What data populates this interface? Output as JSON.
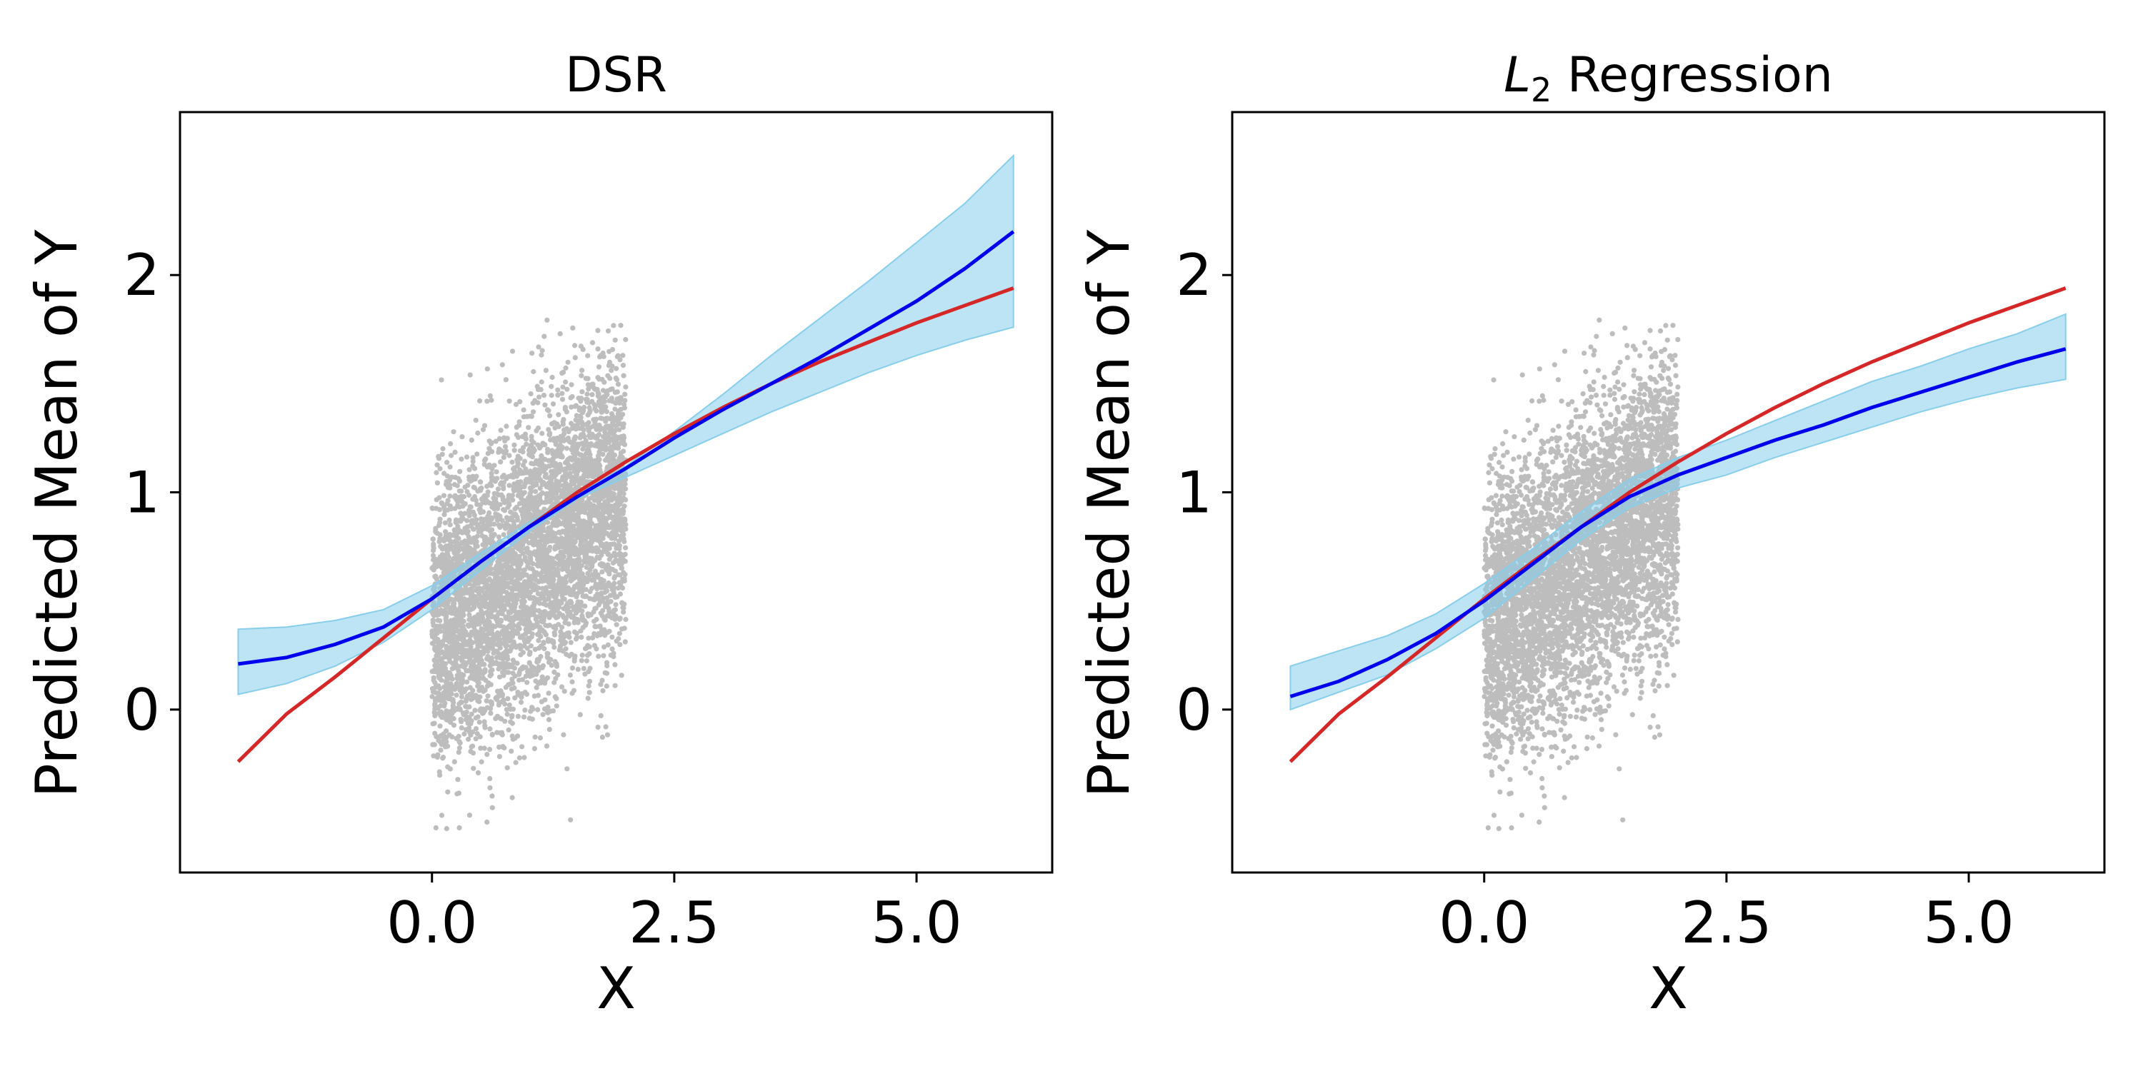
{
  "chart_data": [
    {
      "type": "line",
      "title": "DSR",
      "title_subscript": "",
      "title_suffix": "",
      "xlabel": "X",
      "ylabel": "Predicted Mean of Y",
      "xlim": [
        -2.6,
        6.4
      ],
      "ylim": [
        -0.75,
        2.75
      ],
      "xticks": [
        0.0,
        2.5,
        5.0
      ],
      "xtick_labels": [
        "0.0",
        "2.5",
        "5.0"
      ],
      "yticks": [
        0,
        1,
        2
      ],
      "ytick_labels": [
        "0",
        "1",
        "2"
      ],
      "grid": false,
      "colors": {
        "band": "#87ceeb",
        "predicted": "#0000ee",
        "true": "#d62728",
        "scatter": "#bdbdbd"
      },
      "x": [
        -2.0,
        -1.5,
        -1.0,
        -0.5,
        0.0,
        0.5,
        1.0,
        1.5,
        2.0,
        2.5,
        3.0,
        3.5,
        4.0,
        4.5,
        5.0,
        5.5,
        6.0
      ],
      "series": [
        {
          "role": "band_lower",
          "style": "band",
          "values": [
            0.07,
            0.12,
            0.2,
            0.31,
            0.46,
            0.64,
            0.82,
            0.97,
            1.07,
            1.17,
            1.27,
            1.37,
            1.46,
            1.55,
            1.63,
            1.7,
            1.76
          ]
        },
        {
          "role": "band_upper",
          "style": "band",
          "values": [
            0.37,
            0.38,
            0.41,
            0.46,
            0.57,
            0.72,
            0.86,
            0.99,
            1.12,
            1.28,
            1.45,
            1.63,
            1.8,
            1.97,
            2.15,
            2.33,
            2.55
          ]
        },
        {
          "role": "predicted",
          "style": "line",
          "values": [
            0.21,
            0.24,
            0.3,
            0.38,
            0.51,
            0.68,
            0.84,
            0.98,
            1.11,
            1.25,
            1.38,
            1.5,
            1.62,
            1.75,
            1.88,
            2.03,
            2.2
          ]
        },
        {
          "role": "true",
          "style": "line",
          "values": [
            -0.24,
            -0.02,
            0.15,
            0.33,
            0.51,
            0.68,
            0.84,
            1.0,
            1.14,
            1.27,
            1.39,
            1.5,
            1.6,
            1.69,
            1.78,
            1.86,
            1.94
          ]
        }
      ],
      "scatter": {
        "x_range": [
          0.0,
          2.0
        ],
        "center": [
          0.9,
          0.65
        ],
        "y_min": -0.55,
        "y_max": 1.8,
        "points": 5000
      }
    },
    {
      "type": "line",
      "title": "L",
      "title_subscript": "2",
      "title_suffix": " Regression",
      "xlabel": "X",
      "ylabel": "Predicted Mean of Y",
      "xlim": [
        -2.6,
        6.4
      ],
      "ylim": [
        -0.75,
        2.75
      ],
      "xticks": [
        0.0,
        2.5,
        5.0
      ],
      "xtick_labels": [
        "0.0",
        "2.5",
        "5.0"
      ],
      "yticks": [
        0,
        1,
        2
      ],
      "ytick_labels": [
        "0",
        "1",
        "2"
      ],
      "grid": false,
      "colors": {
        "band": "#87ceeb",
        "predicted": "#0000ee",
        "true": "#d62728",
        "scatter": "#bdbdbd"
      },
      "x": [
        -2.0,
        -1.5,
        -1.0,
        -0.5,
        0.0,
        0.5,
        1.0,
        1.5,
        2.0,
        2.5,
        3.0,
        3.5,
        4.0,
        4.5,
        5.0,
        5.5,
        6.0
      ],
      "series": [
        {
          "role": "band_lower",
          "style": "band",
          "values": [
            0.0,
            0.08,
            0.16,
            0.28,
            0.42,
            0.6,
            0.78,
            0.93,
            1.02,
            1.08,
            1.16,
            1.23,
            1.3,
            1.37,
            1.43,
            1.48,
            1.52
          ]
        },
        {
          "role": "band_upper",
          "style": "band",
          "values": [
            0.2,
            0.27,
            0.34,
            0.44,
            0.58,
            0.74,
            0.91,
            1.06,
            1.16,
            1.24,
            1.33,
            1.42,
            1.51,
            1.58,
            1.66,
            1.73,
            1.82
          ]
        },
        {
          "role": "predicted",
          "style": "line",
          "values": [
            0.06,
            0.13,
            0.23,
            0.35,
            0.5,
            0.67,
            0.84,
            0.98,
            1.08,
            1.16,
            1.24,
            1.31,
            1.39,
            1.46,
            1.53,
            1.6,
            1.66
          ]
        },
        {
          "role": "true",
          "style": "line",
          "values": [
            -0.24,
            -0.02,
            0.15,
            0.33,
            0.51,
            0.68,
            0.84,
            1.0,
            1.14,
            1.27,
            1.39,
            1.5,
            1.6,
            1.69,
            1.78,
            1.86,
            1.94
          ]
        }
      ],
      "scatter": {
        "x_range": [
          0.0,
          2.0
        ],
        "center": [
          0.9,
          0.65
        ],
        "y_min": -0.55,
        "y_max": 1.8,
        "points": 5000
      }
    }
  ]
}
